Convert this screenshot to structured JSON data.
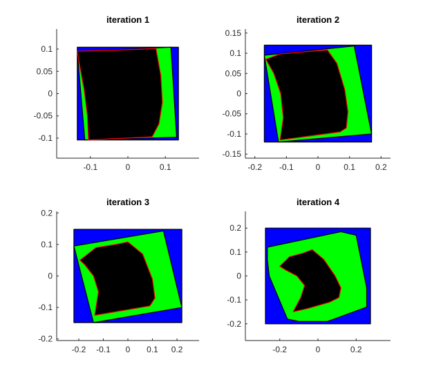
{
  "chart_data": [
    {
      "type": "area",
      "title": "iteration 1",
      "xlim": [
        -0.19,
        0.19
      ],
      "ylim": [
        -0.145,
        0.145
      ],
      "xticks": [
        -0.1,
        0,
        0.1
      ],
      "xtick_labels": [
        "-0.1",
        "0",
        "0.1"
      ],
      "yticks": [
        -0.1,
        -0.05,
        0,
        0.05,
        0.1
      ],
      "ytick_labels": [
        "-0.1",
        "-0.05",
        "0",
        "0.05",
        "0.1"
      ],
      "regions": [
        {
          "name": "",
          "color": "#0000ff",
          "edge": "#000000",
          "points": [
            [
              -0.135,
              0.104
            ],
            [
              0.135,
              0.104
            ],
            [
              0.135,
              -0.104
            ],
            [
              -0.135,
              -0.104
            ]
          ]
        },
        {
          "name": "",
          "color": "#00ff00",
          "edge": "#000000",
          "points": [
            [
              -0.135,
              0.095
            ],
            [
              0.115,
              0.104
            ],
            [
              0.13,
              -0.098
            ],
            [
              -0.115,
              -0.104
            ]
          ]
        },
        {
          "name": "",
          "color": "#000000",
          "edge": "#ff0000",
          "points": [
            [
              -0.135,
              0.095
            ],
            [
              -0.05,
              0.097
            ],
            [
              0.075,
              0.101
            ],
            [
              0.088,
              0.04
            ],
            [
              0.092,
              -0.02
            ],
            [
              0.083,
              -0.068
            ],
            [
              0.065,
              -0.097
            ],
            [
              -0.105,
              -0.104
            ],
            [
              -0.108,
              -0.05
            ],
            [
              -0.117,
              0.01
            ],
            [
              -0.128,
              0.06
            ]
          ]
        }
      ]
    },
    {
      "type": "area",
      "title": "iteration 2",
      "xlim": [
        -0.23,
        0.23
      ],
      "ylim": [
        -0.16,
        0.16
      ],
      "xticks": [
        -0.2,
        -0.1,
        0,
        0.1,
        0.2
      ],
      "xtick_labels": [
        "-0.2",
        "-0.1",
        "0",
        "0.1",
        "0.2"
      ],
      "yticks": [
        -0.15,
        -0.1,
        -0.05,
        0,
        0.05,
        0.1,
        0.15
      ],
      "ytick_labels": [
        "-0.15",
        "-0.1",
        "-0.05",
        "0",
        "0.05",
        "0.1",
        "0.15"
      ],
      "regions": [
        {
          "name": "",
          "color": "#0000ff",
          "edge": "#000000",
          "points": [
            [
              -0.17,
              0.12
            ],
            [
              0.17,
              0.12
            ],
            [
              0.17,
              -0.12
            ],
            [
              -0.17,
              -0.12
            ]
          ]
        },
        {
          "name": "",
          "color": "#00ff00",
          "edge": "#000000",
          "points": [
            [
              -0.17,
              0.095
            ],
            [
              0.115,
              0.118
            ],
            [
              0.17,
              -0.1
            ],
            [
              -0.125,
              -0.12
            ]
          ]
        },
        {
          "name": "",
          "color": "#000000",
          "edge": "#ff0000",
          "points": [
            [
              -0.165,
              0.085
            ],
            [
              -0.12,
              0.098
            ],
            [
              -0.02,
              0.105
            ],
            [
              0.03,
              0.108
            ],
            [
              0.06,
              0.075
            ],
            [
              0.085,
              0.01
            ],
            [
              0.095,
              -0.045
            ],
            [
              0.09,
              -0.085
            ],
            [
              0.07,
              -0.095
            ],
            [
              -0.12,
              -0.115
            ],
            [
              -0.11,
              -0.06
            ],
            [
              -0.118,
              0.0
            ],
            [
              -0.14,
              0.05
            ]
          ]
        }
      ]
    },
    {
      "type": "area",
      "title": "iteration 3",
      "xlim": [
        -0.29,
        0.29
      ],
      "ylim": [
        -0.205,
        0.205
      ],
      "xticks": [
        -0.2,
        -0.1,
        0,
        0.1,
        0.2
      ],
      "xtick_labels": [
        "-0.2",
        "-0.1",
        "0",
        "0.1",
        "0.2"
      ],
      "yticks": [
        -0.2,
        -0.1,
        0,
        0.1,
        0.2
      ],
      "ytick_labels": [
        "-0.2",
        "-0.1",
        "0",
        "0.1",
        "0.2"
      ],
      "regions": [
        {
          "name": "",
          "color": "#0000ff",
          "edge": "#000000",
          "points": [
            [
              -0.22,
              0.148
            ],
            [
              0.22,
              0.148
            ],
            [
              0.22,
              -0.148
            ],
            [
              -0.22,
              -0.148
            ]
          ]
        },
        {
          "name": "",
          "color": "#00ff00",
          "edge": "#000000",
          "points": [
            [
              -0.22,
              0.095
            ],
            [
              0.145,
              0.143
            ],
            [
              0.22,
              -0.1
            ],
            [
              -0.14,
              -0.148
            ]
          ]
        },
        {
          "name": "",
          "color": "#000000",
          "edge": "#ff0000",
          "points": [
            [
              -0.195,
              0.05
            ],
            [
              -0.13,
              0.09
            ],
            [
              -0.05,
              0.1
            ],
            [
              0.0,
              0.108
            ],
            [
              0.06,
              0.07
            ],
            [
              0.1,
              -0.01
            ],
            [
              0.11,
              -0.07
            ],
            [
              0.09,
              -0.095
            ],
            [
              -0.135,
              -0.125
            ],
            [
              -0.12,
              -0.05
            ],
            [
              -0.14,
              0.0
            ],
            [
              -0.175,
              0.035
            ]
          ]
        }
      ]
    },
    {
      "type": "area",
      "title": "iteration 4",
      "xlim": [
        -0.38,
        0.38
      ],
      "ylim": [
        -0.27,
        0.27
      ],
      "xticks": [
        -0.2,
        0,
        0.2
      ],
      "xtick_labels": [
        "-0.2",
        "0",
        "0.2"
      ],
      "yticks": [
        -0.2,
        -0.1,
        0,
        0.1,
        0.2
      ],
      "ytick_labels": [
        "-0.2",
        "-0.1",
        "0",
        "0.1",
        "0.2"
      ],
      "regions": [
        {
          "name": "",
          "color": "#0000ff",
          "edge": "#000000",
          "points": [
            [
              -0.275,
              0.2
            ],
            [
              0.275,
              0.2
            ],
            [
              0.275,
              -0.2
            ],
            [
              -0.275,
              -0.2
            ]
          ]
        },
        {
          "name": "",
          "color": "#00ff00",
          "edge": "#000000",
          "points": [
            [
              -0.265,
              0.12
            ],
            [
              0.12,
              0.185
            ],
            [
              0.2,
              0.17
            ],
            [
              0.255,
              -0.05
            ],
            [
              0.255,
              -0.13
            ],
            [
              0.05,
              -0.19
            ],
            [
              -0.1,
              -0.19
            ],
            [
              -0.16,
              -0.18
            ],
            [
              -0.255,
              0.0
            ],
            [
              -0.265,
              0.07
            ]
          ]
        },
        {
          "name": "",
          "color": "#000000",
          "edge": "#ff0000",
          "points": [
            [
              -0.2,
              0.04
            ],
            [
              -0.15,
              0.08
            ],
            [
              -0.08,
              0.095
            ],
            [
              -0.03,
              0.11
            ],
            [
              0.03,
              0.07
            ],
            [
              0.09,
              0.0
            ],
            [
              0.12,
              -0.05
            ],
            [
              0.11,
              -0.09
            ],
            [
              0.06,
              -0.11
            ],
            [
              -0.05,
              -0.135
            ],
            [
              -0.13,
              -0.15
            ],
            [
              -0.09,
              -0.09
            ],
            [
              -0.07,
              -0.04
            ],
            [
              -0.11,
              -0.0
            ],
            [
              -0.17,
              0.025
            ]
          ]
        }
      ]
    }
  ]
}
